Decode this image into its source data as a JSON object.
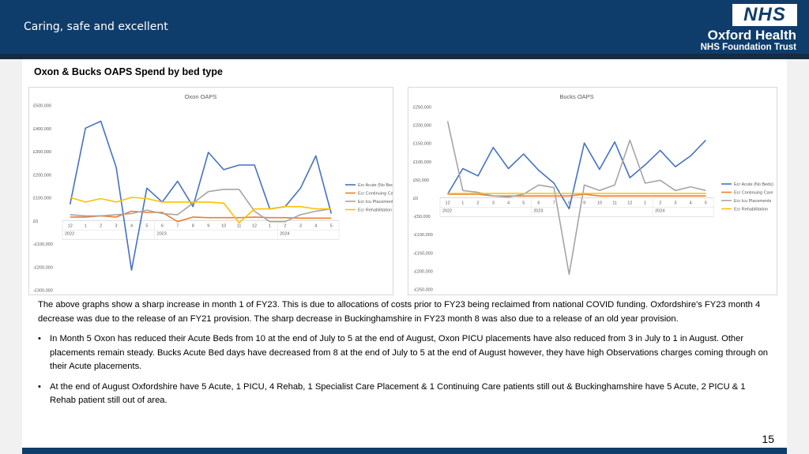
{
  "header": {
    "tagline": "Caring, safe and excellent",
    "logo_text": "NHS",
    "org_name": "Oxford Health",
    "org_sub": "NHS Foundation Trust"
  },
  "page_title": "Oxon & Bucks OAPS Spend by bed type",
  "chart_data": [
    {
      "type": "line",
      "title": "Oxon OAPS",
      "x": [
        "12",
        "1",
        "2",
        "3",
        "4",
        "5",
        "6",
        "7",
        "8",
        "9",
        "10",
        "11",
        "12",
        "1",
        "2",
        "3",
        "4",
        "5"
      ],
      "year_labels": [
        {
          "label": "2022",
          "index": 0
        },
        {
          "label": "2023",
          "index": 6
        },
        {
          "label": "2024",
          "index": 14
        }
      ],
      "ylim": [
        -300000,
        500000
      ],
      "yticks": [
        -300000,
        -200000,
        -100000,
        0,
        100000,
        200000,
        300000,
        400000,
        500000
      ],
      "ytick_labels": [
        "-£300,000",
        "-£200,000",
        "-£100,000",
        "£0",
        "£100,000",
        "£200,000",
        "£300,000",
        "£400,000",
        "£500,000"
      ],
      "grid": false,
      "legend": "right",
      "series": [
        {
          "name": "Ecr Acute (No Beds)",
          "color": "#4472c4",
          "values": [
            70000,
            400000,
            430000,
            230000,
            -215000,
            140000,
            80000,
            170000,
            60000,
            295000,
            220000,
            240000,
            240000,
            50000,
            60000,
            140000,
            280000,
            30000
          ]
        },
        {
          "name": "Ecr Continuing Care",
          "color": "#ed7d31",
          "values": [
            15000,
            15000,
            20000,
            15000,
            40000,
            35000,
            35000,
            -5000,
            15000,
            12000,
            12000,
            12000,
            15000,
            12000,
            12000,
            10000,
            10000,
            10000
          ]
        },
        {
          "name": "Ecr Icu Placements",
          "color": "#a5a5a5",
          "values": [
            25000,
            20000,
            20000,
            25000,
            30000,
            45000,
            30000,
            25000,
            75000,
            125000,
            135000,
            135000,
            40000,
            -5000,
            -5000,
            25000,
            40000,
            50000
          ]
        },
        {
          "name": "Ecr Rehabilitation",
          "color": "#ffc000",
          "values": [
            100000,
            80000,
            95000,
            80000,
            100000,
            95000,
            80000,
            80000,
            80000,
            80000,
            75000,
            -10000,
            50000,
            50000,
            60000,
            60000,
            50000,
            50000
          ]
        }
      ]
    },
    {
      "type": "line",
      "title": "Bucks OAPS",
      "x": [
        "12",
        "1",
        "2",
        "3",
        "4",
        "5",
        "6",
        "7",
        "8",
        "9",
        "10",
        "11",
        "12",
        "1",
        "2",
        "3",
        "4",
        "5"
      ],
      "year_labels": [
        {
          "label": "2022",
          "index": 0
        },
        {
          "label": "2023",
          "index": 6
        },
        {
          "label": "2024",
          "index": 14
        }
      ],
      "ylim": [
        -250000,
        250000
      ],
      "yticks": [
        -250000,
        -200000,
        -150000,
        -100000,
        -50000,
        0,
        50000,
        100000,
        150000,
        200000,
        250000
      ],
      "ytick_labels": [
        "-£250,000",
        "-£200,000",
        "-£150,000",
        "-£100,000",
        "-£50,000",
        "£0",
        "£50,000",
        "£100,000",
        "£150,000",
        "£200,000",
        "£250,000"
      ],
      "grid": false,
      "legend": "right",
      "series": [
        {
          "name": "Ecr Acute (No Beds)",
          "color": "#4472c4",
          "values": [
            10000,
            80000,
            60000,
            138000,
            80000,
            120000,
            75000,
            40000,
            -30000,
            150000,
            78000,
            153000,
            55000,
            90000,
            130000,
            85000,
            115000,
            158000
          ]
        },
        {
          "name": "Ecr Continuing Care",
          "color": "#ed7d31",
          "values": [
            10000,
            10000,
            10000,
            5000,
            5000,
            5000,
            5000,
            5000,
            5000,
            10000,
            5000,
            5000,
            5000,
            5000,
            5000,
            5000,
            5000,
            5000
          ]
        },
        {
          "name": "Ecr Icu Placements",
          "color": "#a5a5a5",
          "values": [
            210000,
            20000,
            15000,
            5000,
            2000,
            10000,
            35000,
            28000,
            -210000,
            35000,
            20000,
            35000,
            158000,
            40000,
            48000,
            20000,
            30000,
            20000
          ]
        },
        {
          "name": "Ecr Rehabilitation",
          "color": "#ffc000",
          "values": [
            12000,
            12000,
            12000,
            12000,
            12000,
            12000,
            12000,
            12000,
            12000,
            12000,
            12000,
            12000,
            12000,
            12000,
            12000,
            12000,
            12000,
            12000
          ]
        }
      ]
    }
  ],
  "body": {
    "para1": "The above graphs show a sharp increase in month 1 of FY23. This is due to allocations of costs prior to FY23 being reclaimed from national COVID funding. Oxfordshire's FY23 month 4 decrease was due to the release of an FY21 provision. The sharp decrease in Buckinghamshire in FY23 month 8 was also due to a release of an old year provision.",
    "bullet_char": "•",
    "bullet1": "In Month 5 Oxon has reduced their Acute Beds from 10 at the end of July to 5 at the end of August, Oxon PICU placements have also reduced from 3 in July to 1 in August. Other placements remain steady.  Bucks Acute Bed days have decreased from 8 at the end of July to 5 at the end of August however, they have high Observations charges coming through on their Acute placements.",
    "bullet2": "At the end of August Oxfordshire have 5 Acute, 1 PICU, 4 Rehab, 1 Specialist Care Placement & 1 Continuing Care patients still out & Buckinghamshire have 5 Acute, 2 PICU & 1 Rehab patient still out of area."
  },
  "page_number": "15"
}
